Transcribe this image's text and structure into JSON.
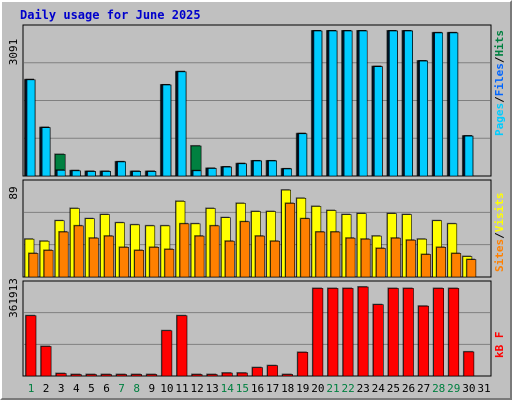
{
  "title": "Daily usage for June 2025",
  "colors": {
    "background": "#c0c0c0",
    "hits": "#00ccff",
    "files": "#0066ff",
    "pages": "#00ccff",
    "hits_overlay_teal": "#008040",
    "visits": "#ffff00",
    "sites": "#ff8000",
    "kbytes": "#ff0000",
    "weekend_day": "#008040",
    "weekday": "#000000",
    "title": "#0000cc"
  },
  "chart_data": [
    {
      "type": "bar",
      "panel": "hits-files-pages",
      "title": "Daily usage for June 2025",
      "ylabel_parts": [
        "Pages",
        "Files",
        "Hits"
      ],
      "ylabel_colors": [
        "#00ccff",
        "#0066ff",
        "#008040"
      ],
      "separator": "/",
      "max_label": "3091",
      "ylim": [
        0,
        3091
      ],
      "grid": true,
      "categories": [
        "1",
        "2",
        "3",
        "4",
        "5",
        "6",
        "7",
        "8",
        "9",
        "10",
        "11",
        "12",
        "13",
        "14",
        "15",
        "16",
        "17",
        "18",
        "19",
        "20",
        "21",
        "22",
        "23",
        "24",
        "25",
        "26",
        "27",
        "28",
        "29",
        "30",
        "31"
      ],
      "series": [
        {
          "name": "Hits",
          "values": [
            2050,
            1030,
            460,
            110,
            95,
            95,
            300,
            95,
            95,
            1940,
            2220,
            640,
            160,
            190,
            260,
            320,
            320,
            150,
            900,
            3091,
            3091,
            3091,
            3091,
            2330,
            3091,
            3091,
            2450,
            3050,
            3050,
            850,
            0
          ]
        },
        {
          "name": "Files",
          "values": [
            2050,
            1030,
            120,
            110,
            95,
            95,
            300,
            95,
            95,
            1940,
            2220,
            110,
            160,
            190,
            260,
            320,
            320,
            150,
            900,
            3091,
            3091,
            3091,
            3091,
            2330,
            3091,
            3091,
            2450,
            3050,
            3050,
            850,
            0
          ]
        },
        {
          "name": "Pages",
          "values": [
            2050,
            1030,
            120,
            110,
            95,
            95,
            300,
            95,
            95,
            1940,
            2220,
            110,
            160,
            190,
            260,
            320,
            320,
            150,
            900,
            3091,
            3091,
            3091,
            3091,
            2330,
            3091,
            3091,
            2450,
            3050,
            3050,
            850,
            0
          ]
        }
      ]
    },
    {
      "type": "bar",
      "panel": "visits-sites",
      "ylabel_parts": [
        "Sites",
        "Visits"
      ],
      "ylabel_colors": [
        "#ff8000",
        "#ffff00"
      ],
      "separator": "/",
      "max_label": "89",
      "ylim": [
        0,
        89
      ],
      "grid": true,
      "categories": [
        "1",
        "2",
        "3",
        "4",
        "5",
        "6",
        "7",
        "8",
        "9",
        "10",
        "11",
        "12",
        "13",
        "14",
        "15",
        "16",
        "17",
        "18",
        "19",
        "20",
        "21",
        "22",
        "23",
        "24",
        "25",
        "26",
        "27",
        "28",
        "29",
        "30",
        "31"
      ],
      "series": [
        {
          "name": "Visits",
          "values": [
            37,
            35,
            55,
            67,
            57,
            61,
            53,
            51,
            50,
            50,
            74,
            52,
            67,
            58,
            72,
            64,
            64,
            85,
            77,
            69,
            65,
            61,
            62,
            40,
            62,
            61,
            37,
            55,
            52,
            20,
            0
          ]
        },
        {
          "name": "Sites",
          "values": [
            23,
            26,
            44,
            50,
            38,
            40,
            29,
            26,
            29,
            27,
            52,
            40,
            50,
            35,
            54,
            40,
            35,
            72,
            57,
            44,
            44,
            38,
            37,
            28,
            38,
            36,
            22,
            29,
            23,
            17,
            0
          ]
        }
      ]
    },
    {
      "type": "bar",
      "panel": "kbytes",
      "ylabel_parts": [
        "kB F"
      ],
      "ylabel_colors": [
        "#ff0000"
      ],
      "max_label": "361913",
      "ylim": [
        0,
        361913
      ],
      "grid": true,
      "categories": [
        "1",
        "2",
        "3",
        "4",
        "5",
        "6",
        "7",
        "8",
        "9",
        "10",
        "11",
        "12",
        "13",
        "14",
        "15",
        "16",
        "17",
        "18",
        "19",
        "20",
        "21",
        "22",
        "23",
        "24",
        "25",
        "26",
        "27",
        "28",
        "29",
        "30",
        "31"
      ],
      "series": [
        {
          "name": "KBytes",
          "values": [
            245000,
            120000,
            10000,
            6000,
            6000,
            6000,
            6000,
            6000,
            6000,
            184000,
            245000,
            6000,
            6000,
            12000,
            12000,
            34000,
            42000,
            6000,
            96000,
            356000,
            356000,
            356000,
            361913,
            290000,
            356000,
            356000,
            284000,
            356000,
            356000,
            98000,
            0
          ]
        }
      ]
    }
  ],
  "x_axis": {
    "days": [
      "1",
      "2",
      "3",
      "4",
      "5",
      "6",
      "7",
      "8",
      "9",
      "10",
      "11",
      "12",
      "13",
      "14",
      "15",
      "16",
      "17",
      "18",
      "19",
      "20",
      "21",
      "22",
      "23",
      "24",
      "25",
      "26",
      "27",
      "28",
      "29",
      "30",
      "31"
    ],
    "weekend_days": [
      "1",
      "7",
      "8",
      "14",
      "15",
      "21",
      "22",
      "28",
      "29"
    ]
  }
}
